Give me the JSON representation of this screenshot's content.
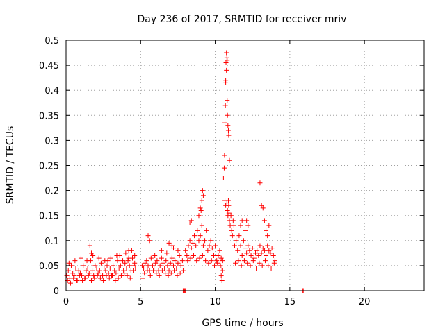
{
  "chart_data": {
    "type": "scatter",
    "title": "Day 236 of 2017, SRMTID for receiver mriv",
    "xlabel": "GPS time / hours",
    "ylabel": "SRMTID / TECUs",
    "xlim": [
      0,
      24
    ],
    "ylim": [
      0,
      0.5
    ],
    "x_ticks": [
      0,
      5,
      10,
      15,
      20
    ],
    "x_tick_labels": [
      "0",
      "5",
      "10",
      "15",
      "20"
    ],
    "y_ticks": [
      0,
      0.05,
      0.1,
      0.15,
      0.2,
      0.25,
      0.3,
      0.35,
      0.4,
      0.45,
      0.5
    ],
    "y_tick_labels": [
      "0",
      "0.05",
      "0.1",
      "0.15",
      "0.2",
      "0.25",
      "0.3",
      "0.35",
      "0.4",
      "0.45",
      "0.5"
    ],
    "grid": true,
    "legend": "none",
    "marker": "plus",
    "color": "#ff0000",
    "series": [
      {
        "x": [
          0.05,
          0.15,
          0.25,
          0.35,
          0.45,
          0.55,
          0.65,
          0.75,
          0.85,
          0.95,
          1.05,
          1.15,
          1.25,
          1.35,
          1.45,
          1.55,
          1.65,
          1.75,
          1.85,
          1.95,
          2.05,
          2.15,
          2.25,
          2.35,
          2.45,
          2.55,
          2.65,
          2.75,
          2.85,
          2.95,
          3.05,
          3.15,
          3.25,
          3.35,
          3.45,
          3.55,
          3.65,
          3.75,
          3.85,
          3.95,
          4.05,
          4.15,
          4.25,
          4.35,
          4.45,
          4.55,
          4.65,
          0.1,
          0.3,
          0.5,
          0.7,
          0.9,
          1.1,
          1.3,
          1.5,
          1.7,
          1.9,
          2.1,
          2.3,
          2.5,
          2.7,
          2.9,
          3.1,
          3.3,
          3.5,
          3.7,
          3.9,
          4.1,
          4.3,
          4.5,
          1.6,
          1.7,
          2.8,
          3.6,
          4.0,
          4.2,
          4.4,
          4.6,
          0.2,
          0.6,
          1.0,
          1.4,
          1.8,
          2.2,
          2.6,
          3.0,
          3.4,
          3.8,
          4.2,
          4.6
        ],
        "y": [
          0.03,
          0.04,
          0.025,
          0.05,
          0.035,
          0.03,
          0.045,
          0.02,
          0.04,
          0.035,
          0.03,
          0.05,
          0.025,
          0.04,
          0.045,
          0.035,
          0.06,
          0.04,
          0.03,
          0.05,
          0.045,
          0.035,
          0.04,
          0.055,
          0.03,
          0.045,
          0.04,
          0.05,
          0.035,
          0.045,
          0.03,
          0.05,
          0.04,
          0.035,
          0.06,
          0.045,
          0.05,
          0.03,
          0.04,
          0.055,
          0.045,
          0.06,
          0.05,
          0.04,
          0.065,
          0.05,
          0.045,
          0.02,
          0.015,
          0.025,
          0.02,
          0.03,
          0.02,
          0.025,
          0.03,
          0.02,
          0.025,
          0.03,
          0.025,
          0.02,
          0.03,
          0.025,
          0.03,
          0.02,
          0.025,
          0.03,
          0.035,
          0.03,
          0.025,
          0.04,
          0.09,
          0.075,
          0.06,
          0.07,
          0.075,
          0.08,
          0.08,
          0.07,
          0.055,
          0.06,
          0.065,
          0.06,
          0.07,
          0.065,
          0.06,
          0.065,
          0.07,
          0.06,
          0.065,
          0.055
        ]
      },
      {
        "x": [
          5.1,
          5.2,
          5.3,
          5.4,
          5.5,
          5.6,
          5.7,
          5.8,
          5.9,
          6.0,
          6.1,
          6.2,
          6.3,
          6.4,
          6.5,
          6.6,
          6.7,
          6.8,
          6.9,
          7.0,
          7.1,
          7.2,
          7.3,
          7.4,
          7.5,
          7.6,
          7.7,
          7.8,
          7.9,
          5.25,
          5.45,
          5.65,
          5.85,
          6.05,
          6.25,
          6.45,
          6.65,
          6.85,
          7.05,
          7.25,
          7.45,
          7.65,
          7.85,
          5.5,
          5.6,
          6.4,
          6.9,
          7.1,
          7.2,
          7.5,
          5.15,
          5.95,
          6.75
        ],
        "y": [
          0.05,
          0.045,
          0.055,
          0.06,
          0.05,
          0.04,
          0.065,
          0.05,
          0.045,
          0.055,
          0.06,
          0.04,
          0.05,
          0.065,
          0.055,
          0.045,
          0.06,
          0.05,
          0.04,
          0.055,
          0.065,
          0.05,
          0.06,
          0.045,
          0.055,
          0.07,
          0.05,
          0.06,
          0.045,
          0.035,
          0.04,
          0.03,
          0.04,
          0.035,
          0.03,
          0.04,
          0.035,
          0.03,
          0.035,
          0.04,
          0.03,
          0.035,
          0.04,
          0.11,
          0.1,
          0.08,
          0.095,
          0.09,
          0.085,
          0.08,
          0.025,
          0.07,
          0.075
        ]
      },
      {
        "x": [
          8.0,
          8.1,
          8.2,
          8.3,
          8.4,
          8.5,
          8.6,
          8.7,
          8.8,
          8.9,
          9.0,
          9.1,
          9.2,
          9.3,
          9.4,
          9.5,
          9.6,
          9.7,
          9.8,
          9.9,
          10.0,
          10.1,
          10.2,
          10.3,
          10.4,
          10.5,
          8.15,
          8.35,
          8.55,
          8.75,
          8.95,
          9.15,
          9.35,
          9.55,
          9.75,
          9.95,
          10.15,
          10.35,
          10.45,
          8.3,
          8.4,
          8.9,
          9.0,
          9.05,
          9.1,
          9.15,
          9.2,
          10.4,
          10.45,
          10.5
        ],
        "y": [
          0.08,
          0.07,
          0.09,
          0.1,
          0.085,
          0.095,
          0.11,
          0.09,
          0.12,
          0.1,
          0.11,
          0.13,
          0.09,
          0.1,
          0.12,
          0.08,
          0.09,
          0.1,
          0.085,
          0.07,
          0.09,
          0.06,
          0.07,
          0.08,
          0.065,
          0.06,
          0.06,
          0.065,
          0.07,
          0.06,
          0.065,
          0.07,
          0.06,
          0.055,
          0.06,
          0.05,
          0.055,
          0.05,
          0.045,
          0.135,
          0.14,
          0.15,
          0.165,
          0.16,
          0.18,
          0.2,
          0.19,
          0.03,
          0.02,
          0.04
        ]
      },
      {
        "x": [
          10.55,
          10.6,
          10.62,
          10.65,
          10.68,
          10.7,
          10.72,
          10.75,
          10.78,
          10.8,
          10.82,
          10.85,
          10.88,
          10.9,
          10.95,
          10.7,
          10.75,
          10.8,
          10.65,
          10.7,
          10.78,
          10.82,
          10.85,
          10.88,
          10.9,
          10.92,
          10.95,
          11.0,
          11.05,
          11.1,
          11.15,
          11.2,
          11.25
        ],
        "y": [
          0.225,
          0.245,
          0.27,
          0.335,
          0.37,
          0.415,
          0.455,
          0.475,
          0.465,
          0.38,
          0.35,
          0.33,
          0.32,
          0.31,
          0.26,
          0.42,
          0.44,
          0.46,
          0.18,
          0.17,
          0.175,
          0.16,
          0.15,
          0.18,
          0.17,
          0.155,
          0.14,
          0.13,
          0.15,
          0.12,
          0.11,
          0.14,
          0.13
        ]
      },
      {
        "x": [
          11.3,
          11.4,
          11.5,
          11.6,
          11.7,
          11.8,
          11.9,
          12.0,
          12.1,
          12.2,
          12.3,
          12.4,
          12.5,
          12.6,
          12.7,
          12.8,
          12.9,
          13.0,
          13.1,
          13.2,
          13.3,
          13.4,
          13.5,
          13.6,
          13.7,
          13.8,
          13.9,
          14.0,
          11.35,
          11.55,
          11.75,
          11.95,
          12.15,
          12.35,
          12.55,
          12.75,
          12.95,
          13.15,
          13.35,
          13.55,
          13.75,
          13.95,
          11.7,
          11.8,
          12.0,
          12.1,
          12.2,
          13.0,
          13.1,
          13.2,
          13.3,
          13.4,
          13.5,
          13.6
        ],
        "y": [
          0.09,
          0.1,
          0.08,
          0.11,
          0.09,
          0.07,
          0.1,
          0.085,
          0.075,
          0.09,
          0.08,
          0.07,
          0.085,
          0.065,
          0.075,
          0.08,
          0.07,
          0.09,
          0.075,
          0.085,
          0.08,
          0.07,
          0.09,
          0.08,
          0.075,
          0.085,
          0.07,
          0.06,
          0.055,
          0.06,
          0.05,
          0.06,
          0.055,
          0.05,
          0.06,
          0.045,
          0.055,
          0.05,
          0.06,
          0.05,
          0.045,
          0.055,
          0.13,
          0.14,
          0.12,
          0.14,
          0.13,
          0.215,
          0.17,
          0.165,
          0.14,
          0.12,
          0.11,
          0.13
        ]
      },
      {
        "x": [
          5.15,
          7.85,
          7.9,
          7.95,
          8.0,
          15.85,
          15.9
        ],
        "y": [
          0.0,
          0.0,
          0.0,
          0.0,
          0.0,
          0.0,
          0.0
        ]
      }
    ]
  }
}
